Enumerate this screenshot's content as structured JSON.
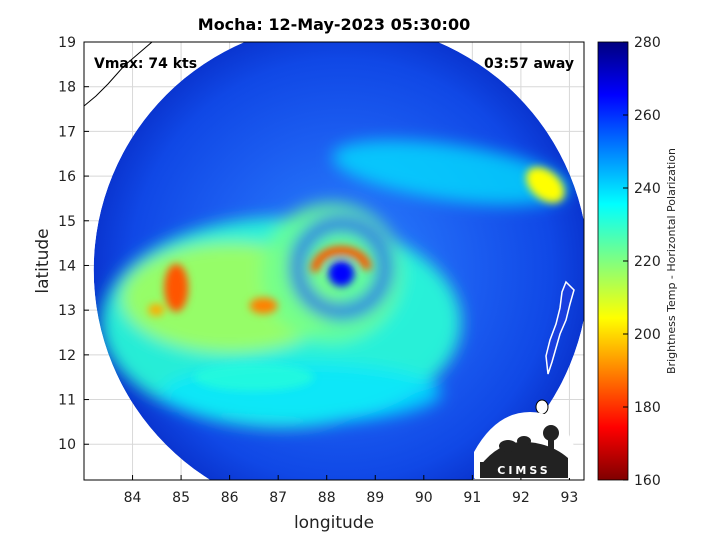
{
  "chart_data": {
    "type": "heatmap",
    "title": "Mocha: 12-May-2023 05:30:00",
    "xlabel": "longitude",
    "ylabel": "latitude",
    "xlim": [
      83,
      93.3
    ],
    "ylim": [
      9.2,
      19
    ],
    "xticks": [
      "84",
      "85",
      "86",
      "87",
      "88",
      "89",
      "90",
      "91",
      "92",
      "93"
    ],
    "yticks": [
      "10",
      "11",
      "12",
      "13",
      "14",
      "15",
      "16",
      "17",
      "18",
      "19"
    ],
    "grid": true,
    "colorbar": {
      "label": "Brightness Temp - Horizontal Polarization",
      "range": [
        160,
        280
      ],
      "ticks": [
        "160",
        "180",
        "200",
        "220",
        "240",
        "260",
        "280"
      ],
      "colormap": "jet"
    },
    "annotations": {
      "vmax": "Vmax: 74 kts",
      "time_away": "03:57 away"
    },
    "swath": {
      "center": [
        88.3,
        13.9
      ],
      "radius_deg": 5.1
    },
    "storm_center": [
      88.3,
      13.95
    ],
    "features": [
      {
        "name": "eyewall",
        "lon": 88.3,
        "lat": 14.0,
        "tb": 185
      },
      {
        "name": "western band",
        "lon": 84.9,
        "lat": 13.5,
        "tb": 185
      },
      {
        "name": "band knot",
        "lon": 86.7,
        "lat": 13.1,
        "tb": 190
      },
      {
        "name": "northeast band",
        "lon": 92.5,
        "lat": 15.8,
        "tb": 205
      },
      {
        "name": "southern rain",
        "lon": 86.5,
        "lat": 11.5,
        "tb": 230
      }
    ]
  },
  "logo": {
    "text": "CIMSS"
  }
}
